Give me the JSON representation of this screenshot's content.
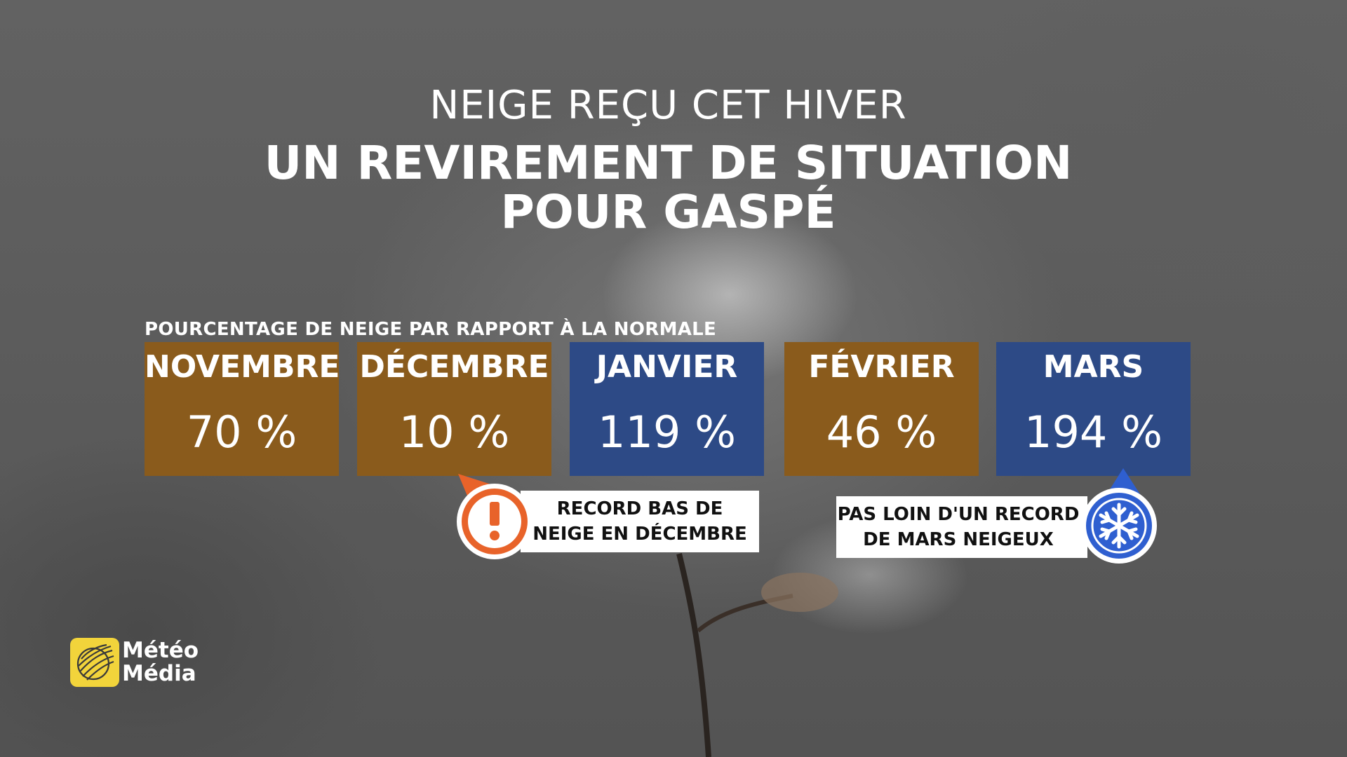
{
  "header": {
    "title_small": "NEIGE REÇU CET HIVER",
    "title_large_line1": "UN REVIREMENT DE SITUATION",
    "title_large_line2": "POUR GASPÉ"
  },
  "subtitle": "POURCENTAGE DE NEIGE PAR RAPPORT À LA NORMALE",
  "months": [
    {
      "name": "NOVEMBRE",
      "value": "70 %",
      "color": "#8a5b1c"
    },
    {
      "name": "DÉCEMBRE",
      "value": "10 %",
      "color": "#8a5b1c"
    },
    {
      "name": "JANVIER",
      "value": "119 %",
      "color": "#2d4a86"
    },
    {
      "name": "FÉVRIER",
      "value": "46 %",
      "color": "#8a5b1c"
    },
    {
      "name": "MARS",
      "value": "194 %",
      "color": "#2d4a86"
    }
  ],
  "callouts": {
    "december": {
      "line1": "RECORD BAS DE",
      "line2": "NEIGE EN DÉCEMBRE",
      "icon": "exclamation-icon",
      "accent": "#e8632a"
    },
    "march": {
      "line1": "PAS LOIN D'UN RECORD",
      "line2": "DE MARS NEIGEUX",
      "icon": "snowflake-icon",
      "accent": "#2f5fd0"
    }
  },
  "logo": {
    "line1": "Météo",
    "line2": "Média",
    "color": "#f2d43b"
  }
}
